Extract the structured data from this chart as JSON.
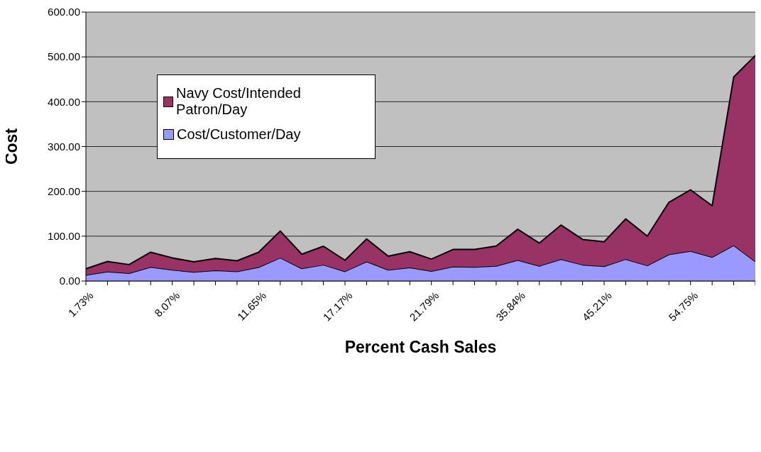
{
  "chart_data": {
    "type": "area",
    "stacked": true,
    "xlabel": "Percent Cash Sales",
    "ylabel": "Cost",
    "categories": [
      "1.73%",
      null,
      null,
      null,
      "8.07%",
      null,
      null,
      null,
      "11.65%",
      null,
      null,
      null,
      "17.17%",
      null,
      null,
      null,
      "21.79%",
      null,
      null,
      null,
      "35.84%",
      null,
      null,
      null,
      "45.21%",
      null,
      null,
      null,
      "54.75%",
      null,
      null,
      null
    ],
    "series": [
      {
        "name": "Cost/Customer/Day",
        "color": "#9999ff",
        "values": [
          13.4,
          21.1,
          17.5,
          31.3,
          24.8,
          20.3,
          23.6,
          21.5,
          30.9,
          52.0,
          28.0,
          36.2,
          21.5,
          43.5,
          24.8,
          30.1,
          22.0,
          32.1,
          31.3,
          33.7,
          46.7,
          33.7,
          48.8,
          36.2,
          32.9,
          48.8,
          34.6,
          59.3,
          66.7,
          53.3,
          79.7,
          43.5
        ]
      },
      {
        "name": "Navy Cost/Intended Patron/Day",
        "color": "#993366",
        "values": [
          13.8,
          22.4,
          19.1,
          32.9,
          26.8,
          22.4,
          26.8,
          23.6,
          33.3,
          59.4,
          31.8,
          41.4,
          24.8,
          50.4,
          30.5,
          35.3,
          26.8,
          38.2,
          39.0,
          44.4,
          68.7,
          50.9,
          76.0,
          56.5,
          54.5,
          89.8,
          65.4,
          116.4,
          136.7,
          114.4,
          375.5,
          459.5
        ]
      }
    ],
    "ylim": [
      0,
      600
    ],
    "yticks": [
      {
        "value": 0,
        "label": "0.00"
      },
      {
        "value": 100,
        "label": "100.00"
      },
      {
        "value": 200,
        "label": "200.00"
      },
      {
        "value": 300,
        "label": "300.00"
      },
      {
        "value": 400,
        "label": "400.00"
      },
      {
        "value": 500,
        "label": "500.00"
      },
      {
        "value": 600,
        "label": "600.00"
      }
    ],
    "grid": "y",
    "legend": "top left"
  }
}
